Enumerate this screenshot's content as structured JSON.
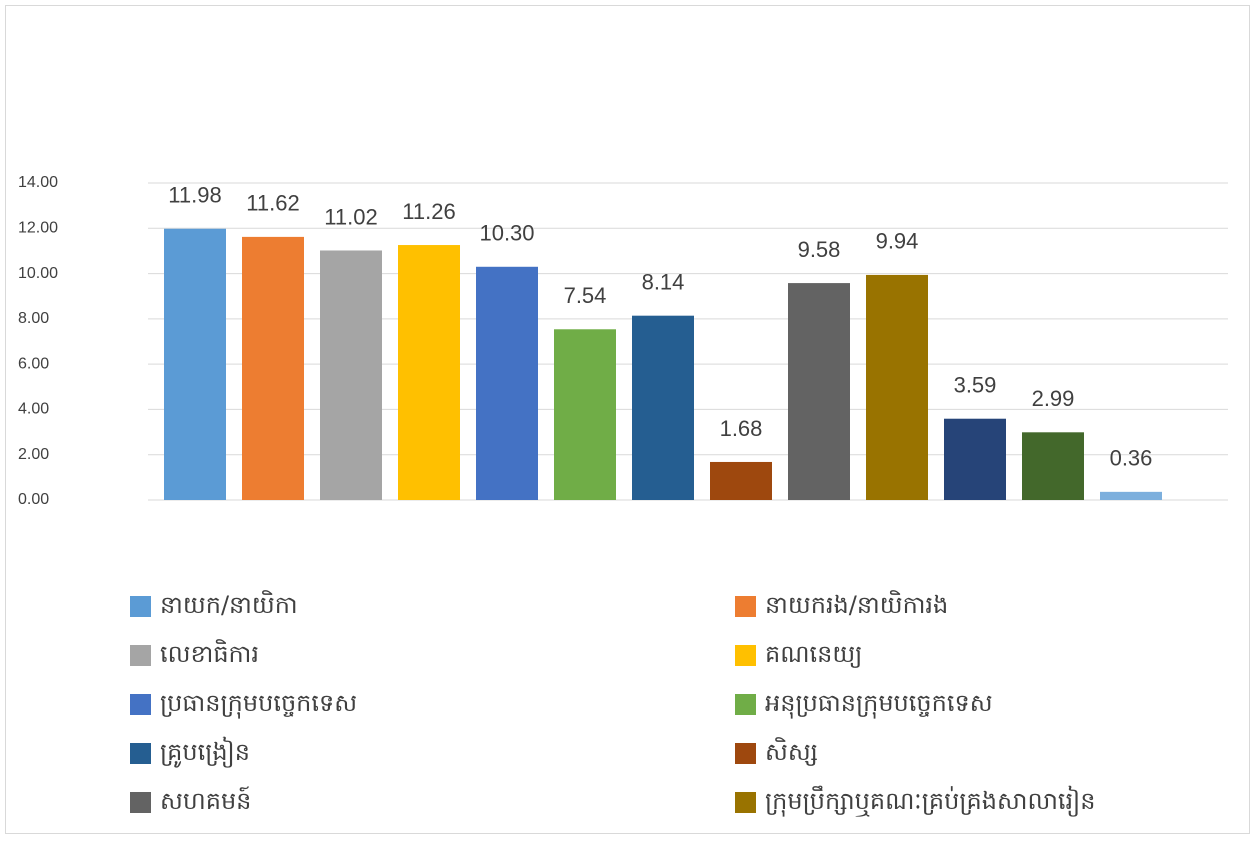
{
  "chart_data": {
    "type": "bar",
    "categories": [
      "នាយក/នាយិកា",
      "នាយករង/នាយិការង",
      "លេខាធិការ",
      "គណនេយ្យ",
      "ប្រធានក្រុមបច្ចេកទេស",
      "អនុប្រធានក្រុមបច្ចេកទេស",
      "គ្រូបង្រៀន",
      "សិស្ស",
      "សហគមន៍",
      "ក្រុមប្រឹក្សាឬគណៈគ្រប់គ្រងសាលារៀន",
      null,
      null,
      null
    ],
    "values": [
      11.98,
      11.62,
      11.02,
      11.26,
      10.3,
      7.54,
      8.14,
      1.68,
      9.58,
      9.94,
      3.59,
      2.99,
      0.36
    ],
    "value_labels": [
      "11.98",
      "11.62",
      "11.02",
      "11.26",
      "10.30",
      "7.54",
      "8.14",
      "1.68",
      "9.58",
      "9.94",
      "3.59",
      "2.99",
      "0.36"
    ],
    "colors": [
      "#5b9bd5",
      "#ed7d31",
      "#a5a5a5",
      "#ffc000",
      "#4472c4",
      "#70ad47",
      "#255e91",
      "#9e480e",
      "#636363",
      "#997300",
      "#264478",
      "#43682b",
      "#7cafdd"
    ],
    "ylim": [
      0,
      14
    ],
    "yticks": [
      {
        "value": 0,
        "label": "0.00"
      },
      {
        "value": 2,
        "label": "2.00"
      },
      {
        "value": 4,
        "label": "4.00"
      },
      {
        "value": 6,
        "label": "6.00"
      },
      {
        "value": 8,
        "label": "8.00"
      },
      {
        "value": 10,
        "label": "10.00"
      },
      {
        "value": 12,
        "label": "12.00"
      },
      {
        "value": 14,
        "label": "14.00"
      }
    ],
    "grid": true,
    "legend": "bottom"
  }
}
